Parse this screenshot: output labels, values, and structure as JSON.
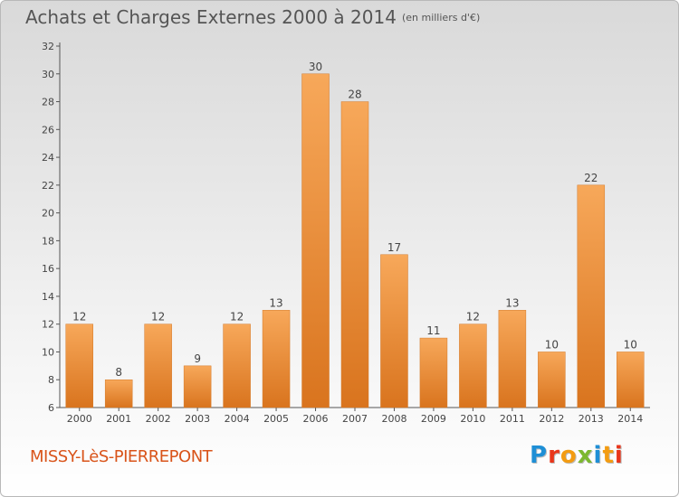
{
  "header": {
    "title": "Achats et Charges Externes 2000 à 2014",
    "subtitle": "(en milliers d'€)"
  },
  "footer": {
    "place_name": "MISSY-LèS-PIERREPONT",
    "logo_text": "Proxiti"
  },
  "colors": {
    "bar_light": "#f7a85a",
    "bar_dark": "#d9741e",
    "place_name": "#d9541a",
    "logo_letters": [
      "#1e8fd6",
      "#e9361b",
      "#f39c12",
      "#7cb82f",
      "#1e8fd6",
      "#f39c12",
      "#e9361b"
    ]
  },
  "chart_data": {
    "type": "bar",
    "title": "Achats et Charges Externes 2000 à 2014",
    "subtitle": "(en milliers d'€)",
    "xlabel": "",
    "ylabel": "",
    "categories": [
      "2000",
      "2001",
      "2002",
      "2003",
      "2004",
      "2005",
      "2006",
      "2007",
      "2008",
      "2009",
      "2010",
      "2011",
      "2012",
      "2013",
      "2014"
    ],
    "values": [
      12,
      8,
      12,
      9,
      12,
      13,
      30,
      28,
      17,
      11,
      12,
      13,
      10,
      22,
      10
    ],
    "ylim": [
      6,
      32
    ],
    "yticks": [
      6,
      8,
      10,
      12,
      14,
      16,
      18,
      20,
      22,
      24,
      26,
      28,
      30,
      32
    ],
    "grid": false,
    "data_labels": true
  }
}
